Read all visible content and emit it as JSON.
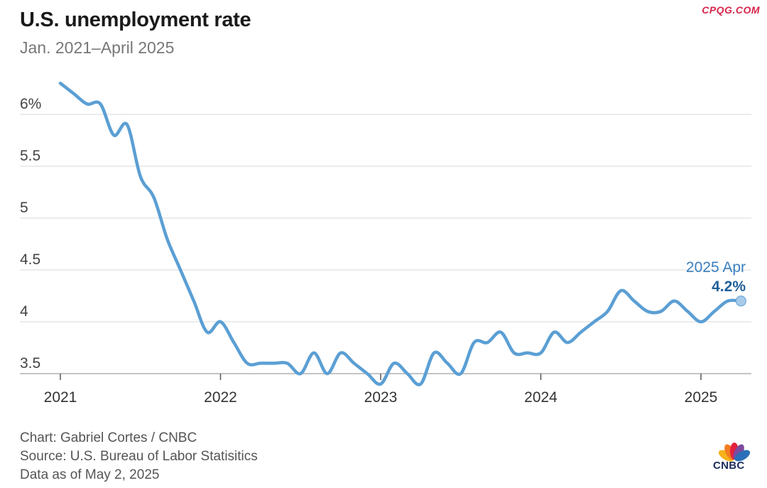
{
  "watermark": "CPQG.COM",
  "title": "U.S. unemployment rate",
  "subtitle": "Jan. 2021–April 2025",
  "chart_data": {
    "type": "line",
    "title": "U.S. unemployment rate",
    "subtitle": "Jan. 2021–April 2025",
    "xlabel": "",
    "ylabel": "",
    "ylim": [
      3.4,
      6.4
    ],
    "y_ticks": [
      {
        "value": 3.5,
        "label": "3.5"
      },
      {
        "value": 4.0,
        "label": "4"
      },
      {
        "value": 4.5,
        "label": "4.5"
      },
      {
        "value": 5.0,
        "label": "5"
      },
      {
        "value": 5.5,
        "label": "5.5"
      },
      {
        "value": 6.0,
        "label": "6%"
      }
    ],
    "x_ticks": [
      {
        "value": 2021,
        "label": "2021"
      },
      {
        "value": 2022,
        "label": "2022"
      },
      {
        "value": 2023,
        "label": "2023"
      },
      {
        "value": 2024,
        "label": "2024"
      },
      {
        "value": 2025,
        "label": "2025"
      }
    ],
    "grid": "horizontal",
    "line_color": "#5b9fd4",
    "series": [
      {
        "start": "2021-01",
        "frequency": "monthly",
        "values": [
          6.3,
          6.2,
          6.1,
          6.1,
          5.8,
          5.9,
          5.4,
          5.2,
          4.8,
          4.5,
          4.2,
          3.9,
          4.0,
          3.8,
          3.6,
          3.6,
          3.6,
          3.6,
          3.5,
          3.7,
          3.5,
          3.7,
          3.6,
          3.5,
          3.4,
          3.6,
          3.5,
          3.4,
          3.7,
          3.6,
          3.5,
          3.8,
          3.8,
          3.9,
          3.7,
          3.7,
          3.7,
          3.9,
          3.8,
          3.9,
          4.0,
          4.1,
          4.3,
          4.2,
          4.1,
          4.1,
          4.2,
          4.1,
          4.0,
          4.1,
          4.2,
          4.2
        ]
      }
    ],
    "annotation": {
      "date": "2025-04",
      "label": "2025 Apr",
      "value_label": "4.2%"
    }
  },
  "footer": {
    "credit": "Chart: Gabriel Cortes / CNBC",
    "source": "Source: U.S. Bureau of Labor Statisitics",
    "date": "Data as of May 2, 2025"
  },
  "logo": {
    "text": "CNBC",
    "colors": [
      "#f5b21a",
      "#f47c20",
      "#e3213c",
      "#7c4a9d",
      "#2a6fb7",
      "#36a94a"
    ]
  }
}
